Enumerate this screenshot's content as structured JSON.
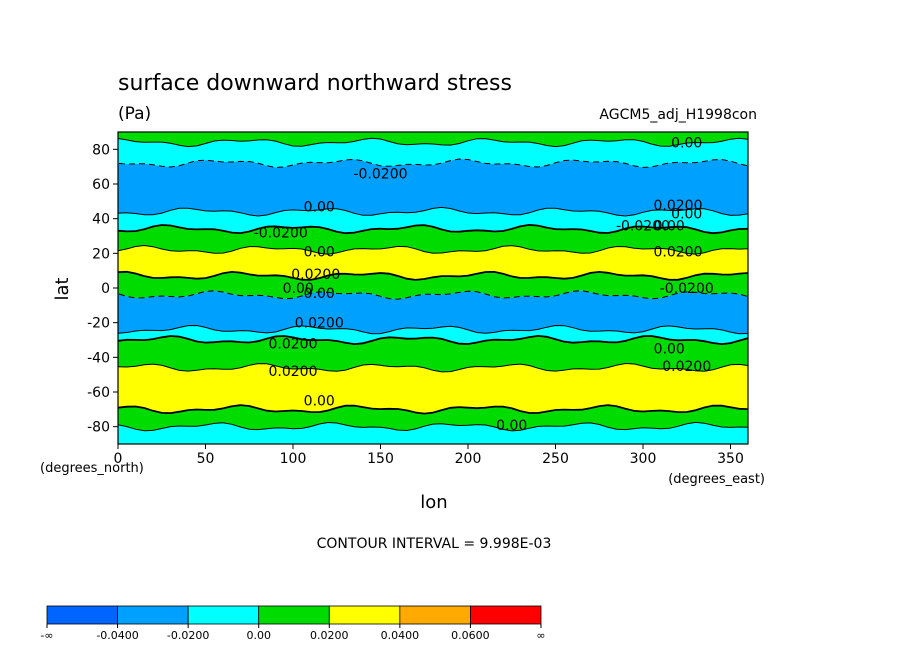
{
  "chart_data": {
    "type": "contour",
    "title": "surface downward northward stress",
    "units": "(Pa)",
    "dataset": "AGCM5_adj_H1998con",
    "xlabel": "lon",
    "ylabel": "lat",
    "x_units": "(degrees_east)",
    "y_units": "(degrees_north)",
    "xlim": [
      0,
      360
    ],
    "ylim": [
      -90,
      90
    ],
    "x_ticks": [
      0,
      50,
      100,
      150,
      200,
      250,
      300,
      350
    ],
    "y_ticks": [
      80,
      60,
      40,
      20,
      0,
      -20,
      -40,
      -60,
      -80
    ],
    "contour_interval_text": "CONTOUR INTERVAL = 9.998E-03",
    "contour_labels": [
      "0.00",
      "-0.0200",
      "0.0200",
      "0.00",
      "-0.0200",
      "0.00",
      "0.0200",
      "-0.0200",
      "0.00",
      "0.0200",
      "0.00",
      "-0.0200",
      "0.00",
      "0.0200",
      "0.0200",
      "0.00",
      "0.0200",
      "0.0200",
      "0.00",
      "0.00",
      "0.00"
    ],
    "zonal_bands": [
      {
        "lat_from": 90,
        "lat_to": 84,
        "level": "0.00 to 0.0200",
        "color": "#00dc00"
      },
      {
        "lat_from": 84,
        "lat_to": 72,
        "level": "-0.0200 to 0.00",
        "color": "#00ffff"
      },
      {
        "lat_from": 72,
        "lat_to": 44,
        "level": "-0.0400 to -0.0200",
        "color": "#00a0ff"
      },
      {
        "lat_from": 44,
        "lat_to": 34,
        "level": "-0.0200 to 0.00",
        "color": "#00ffff"
      },
      {
        "lat_from": 34,
        "lat_to": 22,
        "level": "0.00 to 0.0200",
        "color": "#00dc00"
      },
      {
        "lat_from": 22,
        "lat_to": 7,
        "level": "0.0200 to 0.0400",
        "color": "#ffff00"
      },
      {
        "lat_from": 7,
        "lat_to": -4,
        "level": "0.00 to 0.0200",
        "color": "#00dc00"
      },
      {
        "lat_from": -4,
        "lat_to": -24,
        "level": "-0.0400 to -0.0200",
        "color": "#00a0ff"
      },
      {
        "lat_from": -24,
        "lat_to": -30,
        "level": "-0.0200 to 0.00",
        "color": "#00ffff"
      },
      {
        "lat_from": -30,
        "lat_to": -46,
        "level": "0.00 to 0.0200",
        "color": "#00dc00"
      },
      {
        "lat_from": -46,
        "lat_to": -70,
        "level": "0.0200 to 0.0400",
        "color": "#ffff00"
      },
      {
        "lat_from": -70,
        "lat_to": -80,
        "level": "0.00 to 0.0200",
        "color": "#00dc00"
      },
      {
        "lat_from": -80,
        "lat_to": -90,
        "level": "-0.0200 to 0.00",
        "color": "#00ffff"
      }
    ],
    "colorbar": {
      "labels": [
        "-∞",
        "-0.0400",
        "-0.0200",
        "0.00",
        "0.0200",
        "0.0400",
        "0.0600",
        "∞"
      ],
      "colors": [
        "#0064ff",
        "#00a0ff",
        "#00ffff",
        "#00dc00",
        "#ffff00",
        "#ffaa00",
        "#ff0000"
      ]
    }
  }
}
